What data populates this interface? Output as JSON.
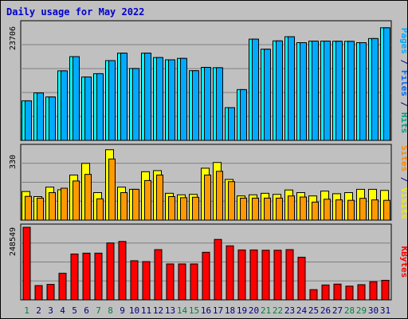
{
  "chart_data": {
    "title": "Daily usage for May 2022",
    "type": "bar",
    "x": [
      "1",
      "2",
      "3",
      "4",
      "5",
      "6",
      "7",
      "8",
      "9",
      "10",
      "11",
      "12",
      "13",
      "14",
      "15",
      "16",
      "17",
      "18",
      "19",
      "20",
      "21",
      "22",
      "23",
      "24",
      "25",
      "26",
      "27",
      "28",
      "29",
      "30",
      "31"
    ],
    "weekend_days": [
      "1",
      "7",
      "8",
      "14",
      "15",
      "21",
      "22",
      "28",
      "29"
    ],
    "panels": [
      {
        "id": "hits",
        "ymax_label": "23706",
        "ylim": [
          0,
          23706
        ],
        "side_labels": [
          {
            "text": "Pages",
            "color": "#00aaff"
          },
          {
            "text": " / ",
            "color": "#000080"
          },
          {
            "text": "Files",
            "color": "#0066ff"
          },
          {
            "text": " / ",
            "color": "#000080"
          },
          {
            "text": "Hits",
            "color": "#00a080"
          }
        ],
        "series": [
          {
            "name": "Hits",
            "color": "#00ffff",
            "values": [
              8050,
              9660,
              8840,
              14150,
              17050,
              12910,
              13570,
              16240,
              17760,
              14630,
              17760,
              16860,
              16400,
              16690,
              14180,
              14860,
              14790,
              6660,
              10330,
              20610,
              18560,
              20250,
              21100,
              19890,
              20210,
              20210,
              20180,
              20160,
              19890,
              20730,
              22920
            ]
          },
          {
            "name": "Files",
            "color": "#00aaff",
            "values": [
              8050,
              9660,
              8840,
              14150,
              17050,
              12910,
              13570,
              16240,
              17760,
              14630,
              17760,
              16860,
              16400,
              16690,
              14180,
              14860,
              14790,
              6660,
              10330,
              20610,
              18560,
              20250,
              21100,
              19890,
              20210,
              20210,
              20180,
              20160,
              19890,
              20730,
              22920
            ]
          }
        ]
      },
      {
        "id": "visits",
        "ymax_label": "330",
        "ylim": [
          0,
          330
        ],
        "side_labels": [
          {
            "text": "Sites",
            "color": "#ff8800"
          },
          {
            "text": " / ",
            "color": "#000080"
          },
          {
            "text": "Visits",
            "color": "#eeee00"
          }
        ],
        "series": [
          {
            "name": "Visits",
            "color": "#ffff00",
            "values": [
              130,
              107,
              150,
              138,
              205,
              258,
              125,
              320,
              150,
              140,
              220,
              225,
              122,
              115,
              117,
              236,
              262,
              185,
              110,
              115,
              122,
              117,
              137,
              125,
              110,
              132,
              120,
              125,
              140,
              140,
              135
            ]
          },
          {
            "name": "Sites",
            "color": "#ff9900",
            "values": [
              108,
              100,
              125,
              145,
              178,
              208,
              97,
              278,
              125,
              140,
              180,
              205,
              107,
              102,
              104,
              205,
              222,
              175,
              100,
              100,
              100,
              100,
              110,
              105,
              82,
              95,
              92,
              90,
              99,
              92,
              90
            ]
          }
        ]
      },
      {
        "id": "kbytes",
        "ymax_label": "248549",
        "ylim": [
          0,
          248549
        ],
        "side_labels": [
          {
            "text": "KBytes",
            "color": "#ff0000"
          }
        ],
        "series": [
          {
            "name": "KBytes",
            "color": "#ff0000",
            "values": [
              248549,
              49000,
              53000,
              91000,
              157000,
              160000,
              160000,
              195000,
              200000,
              134000,
              131000,
              172000,
              123000,
              123000,
              123000,
              163000,
              207000,
              185000,
              171000,
              171000,
              170000,
              170000,
              172000,
              146000,
              35000,
              51000,
              54000,
              47000,
              52000,
              62000,
              67000
            ]
          }
        ]
      }
    ]
  }
}
